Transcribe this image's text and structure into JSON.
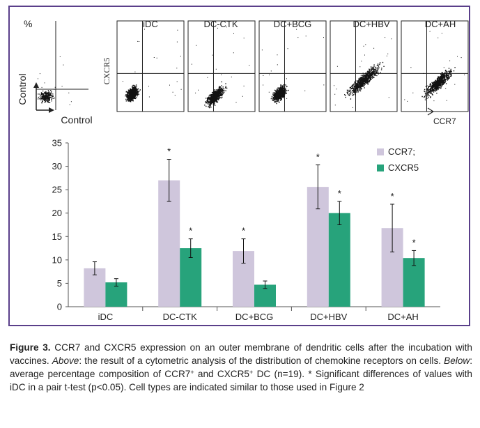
{
  "panels_top": {
    "percent_label": "%",
    "control_y_label": "Control",
    "control_x_label": "Control",
    "cxcr5_axis_label": "CXCR5",
    "ccr7_axis_label": "CCR7",
    "panel_titles": [
      "iDC",
      "DC-CTK",
      "DC+BCG",
      "DC+HBV",
      "DC+AH"
    ]
  },
  "chart_data": {
    "type": "bar",
    "categories": [
      "iDC",
      "DC-CTK",
      "DC+BCG",
      "DC+HBV",
      "DC+AH"
    ],
    "series": [
      {
        "name": "CCR7;",
        "color": "#cfc6dc",
        "values": [
          8.2,
          27.0,
          11.9,
          25.6,
          16.8
        ],
        "errors": [
          1.4,
          4.5,
          2.6,
          4.7,
          5.1
        ],
        "significant": [
          false,
          true,
          true,
          true,
          true
        ]
      },
      {
        "name": "CXCR5",
        "color": "#27a37b",
        "values": [
          5.2,
          12.5,
          4.7,
          20.0,
          10.4
        ],
        "errors": [
          0.8,
          2.0,
          0.8,
          2.5,
          1.6
        ],
        "significant": [
          false,
          true,
          false,
          true,
          true
        ]
      }
    ],
    "ylim": [
      0,
      35
    ],
    "yticks": [
      0,
      5,
      10,
      15,
      20,
      25,
      30,
      35
    ],
    "significance_marker": "*",
    "legend_position": "top-right",
    "title": "",
    "xlabel": "",
    "ylabel": ""
  },
  "caption": {
    "figure_label": "Figure 3.",
    "text1": " CCR7 and CXCR5 expression on an outer membrane of dendritic cells after the incubation with vaccines. ",
    "above_label": "Above",
    "text2": ": the result of a cytometric analysis of the distribution of chemokine receptors on cells. ",
    "below_label": "Below",
    "text3": ": average percentage composition of CCR7",
    "sup1": "+",
    "text4": " and CXCR5",
    "sup2": "+",
    "text5": " DC (n=19). * Significant differences of values with iDC in a pair t-test (p<0.05). Cell types are indicated similar to those used in Figure 2"
  }
}
